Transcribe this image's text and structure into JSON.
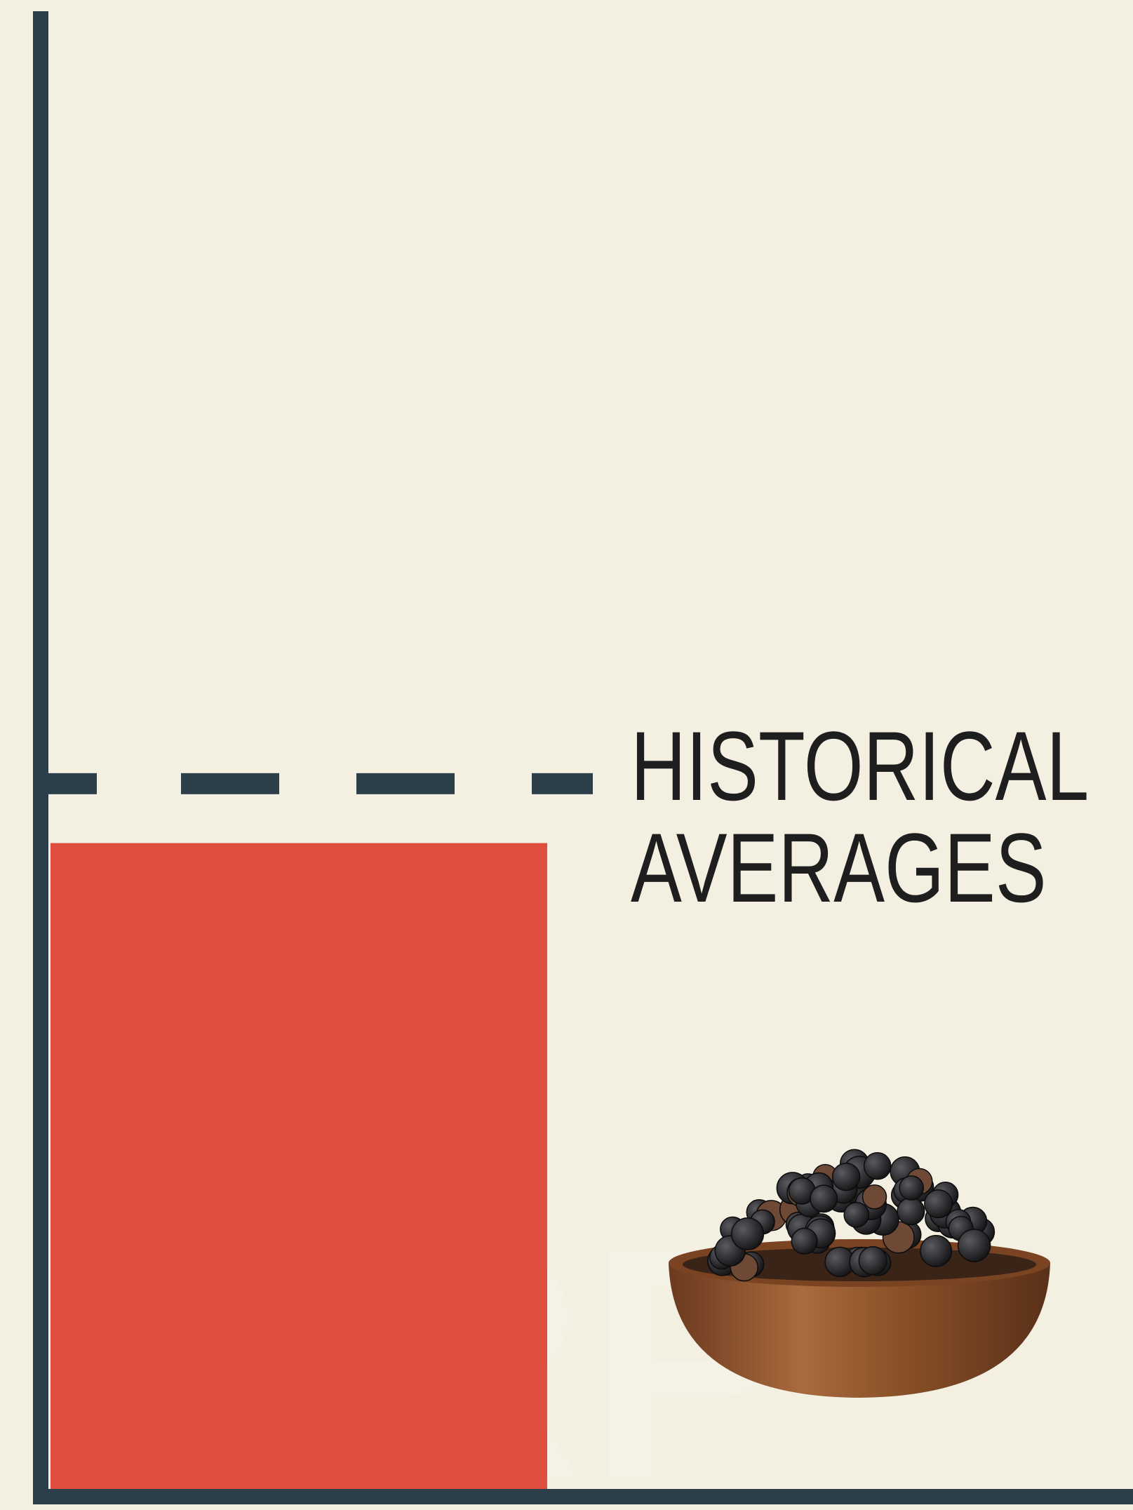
{
  "chart_data": {
    "type": "bar",
    "categories": [
      null
    ],
    "series": [
      {
        "color": "#e04e3f",
        "values": [
          44
        ]
      }
    ],
    "ylim": [
      0,
      100
    ],
    "reference_line": {
      "value": 48,
      "label": [
        "HISTORICAL",
        "AVERAGES"
      ]
    },
    "watermark": "ORP"
  }
}
